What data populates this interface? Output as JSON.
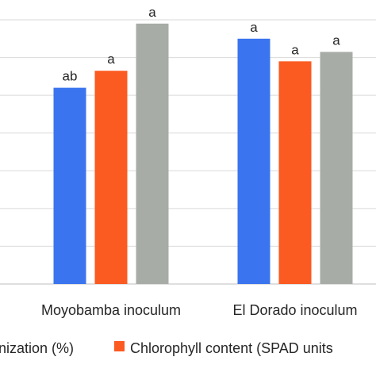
{
  "chart_data": {
    "type": "bar",
    "categories": [
      "Moyobamba inoculum",
      "El Dorado inoculum"
    ],
    "series": [
      {
        "name": "nization (%)",
        "color": "#3a74ee",
        "values": [
          52,
          65
        ],
        "labels": [
          "ab",
          "a"
        ]
      },
      {
        "name": "Chlorophyll content (SPAD units",
        "color": "#fb5a20",
        "values": [
          56.5,
          59
        ],
        "labels": [
          "a",
          "a"
        ]
      },
      {
        "name": "",
        "color": "#a7ada6",
        "values": [
          69,
          61.5
        ],
        "labels": [
          "a",
          "a"
        ]
      }
    ],
    "ylim": [
      0,
      70
    ],
    "gridlines": [
      0,
      10,
      20,
      30,
      40,
      50,
      60,
      70
    ],
    "grid": true,
    "legend_position": "bottom",
    "title": "",
    "xlabel": "",
    "ylabel": ""
  }
}
